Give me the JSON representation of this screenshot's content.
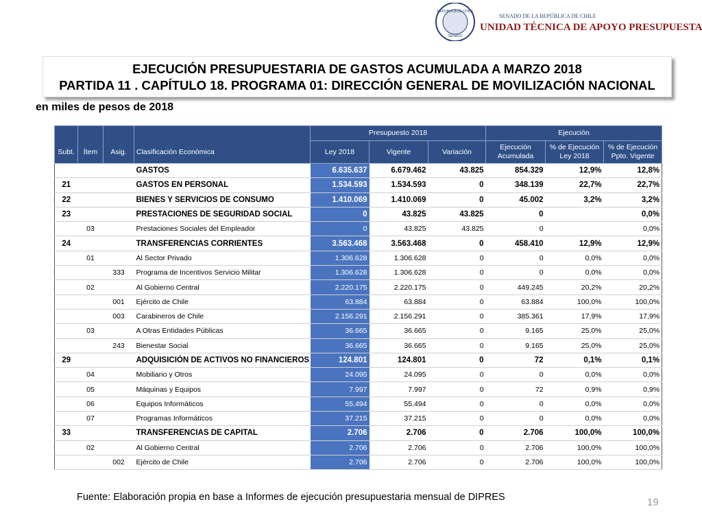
{
  "header": {
    "seal_top": "REPÚBLICA DE CHILE",
    "seal_bottom": "SENADO",
    "org": "SENADO DE LA REPÚBLICA DE CHILE",
    "unit": "UNIDAD TÉCNICA DE APOYO PRESUPUESTARIO"
  },
  "title": [
    "EJECUCIÓN PRESUPUESTARIA DE GASTOS ACUMULADA A MARZO 2018",
    "PARTIDA 11 . CAPÍTULO 18. PROGRAMA 01: DIRECCIÓN GENERAL DE MOVILIZACIÓN NACIONAL"
  ],
  "subtitle": "en miles de pesos de 2018",
  "table": {
    "group_headers": {
      "presupuesto": "Presupuesto 2018",
      "ejecucion": "Ejecución"
    },
    "columns": [
      "Subt.",
      "Ítem",
      "Asig.",
      "Clasificación Económica",
      "Ley 2018",
      "Vigente",
      "Variación",
      "Ejecución Acumulada",
      "% de Ejecución Ley 2018",
      "% de Ejecución Ppto. Vigente"
    ],
    "rows": [
      {
        "clasif": "GASTOS",
        "ley": "6.635.637",
        "vigente": "6.679.462",
        "variacion": "43.825",
        "ejecucion": "854.329",
        "pct_ley": "12,9%",
        "pct_vigente": "12,8%"
      },
      {
        "subt": "21",
        "clasif": "GASTOS EN PERSONAL",
        "ley": "1.534.593",
        "vigente": "1.534.593",
        "variacion": "0",
        "ejecucion": "348.139",
        "pct_ley": "22,7%",
        "pct_vigente": "22,7%"
      },
      {
        "subt": "22",
        "clasif": "BIENES Y SERVICIOS DE CONSUMO",
        "ley": "1.410.069",
        "vigente": "1.410.069",
        "variacion": "0",
        "ejecucion": "45.002",
        "pct_ley": "3,2%",
        "pct_vigente": "3,2%"
      },
      {
        "subt": "23",
        "clasif": "PRESTACIONES DE SEGURIDAD SOCIAL",
        "ley": "0",
        "vigente": "43.825",
        "variacion": "43.825",
        "ejecucion": "0",
        "pct_vigente": "0,0%"
      },
      {
        "item": "03",
        "clasif": "Prestaciones Sociales del Empleador",
        "ley": "0",
        "vigente": "43.825",
        "variacion": "43.825",
        "ejecucion": "0",
        "pct_vigente": "0,0%"
      },
      {
        "subt": "24",
        "clasif": "TRANSFERENCIAS CORRIENTES",
        "ley": "3.563.468",
        "vigente": "3.563.468",
        "variacion": "0",
        "ejecucion": "458.410",
        "pct_ley": "12,9%",
        "pct_vigente": "12,9%"
      },
      {
        "item": "01",
        "clasif": "Al Sector Privado",
        "ley": "1.306.628",
        "vigente": "1.306.628",
        "variacion": "0",
        "ejecucion": "0",
        "pct_ley": "0,0%",
        "pct_vigente": "0,0%"
      },
      {
        "asig": "333",
        "clasif": "Programa de Incentivos Servicio Militar",
        "ley": "1.306.628",
        "vigente": "1.306.628",
        "variacion": "0",
        "ejecucion": "0",
        "pct_ley": "0,0%",
        "pct_vigente": "0,0%"
      },
      {
        "item": "02",
        "clasif": "Al Gobierno Central",
        "ley": "2.220.175",
        "vigente": "2.220.175",
        "variacion": "0",
        "ejecucion": "449.245",
        "pct_ley": "20,2%",
        "pct_vigente": "20,2%"
      },
      {
        "asig": "001",
        "clasif": "Ejército de Chile",
        "ley": "63.884",
        "vigente": "63.884",
        "variacion": "0",
        "ejecucion": "63.884",
        "pct_ley": "100,0%",
        "pct_vigente": "100,0%"
      },
      {
        "asig": "003",
        "clasif": "Carabineros de Chile",
        "ley": "2.156.291",
        "vigente": "2.156.291",
        "variacion": "0",
        "ejecucion": "385.361",
        "pct_ley": "17,9%",
        "pct_vigente": "17,9%"
      },
      {
        "item": "03",
        "clasif": "A Otras Entidades Públicas",
        "ley": "36.665",
        "vigente": "36.665",
        "variacion": "0",
        "ejecucion": "9.165",
        "pct_ley": "25,0%",
        "pct_vigente": "25,0%"
      },
      {
        "asig": "243",
        "clasif": "Bienestar Social",
        "ley": "36.665",
        "vigente": "36.665",
        "variacion": "0",
        "ejecucion": "9.165",
        "pct_ley": "25,0%",
        "pct_vigente": "25,0%"
      },
      {
        "subt": "29",
        "clasif": "ADQUISICIÓN DE ACTIVOS NO FINANCIEROS",
        "ley": "124.801",
        "vigente": "124.801",
        "variacion": "0",
        "ejecucion": "72",
        "pct_ley": "0,1%",
        "pct_vigente": "0,1%"
      },
      {
        "item": "04",
        "clasif": "Mobiliario y Otros",
        "ley": "24.095",
        "vigente": "24.095",
        "variacion": "0",
        "ejecucion": "0",
        "pct_ley": "0,0%",
        "pct_vigente": "0,0%"
      },
      {
        "item": "05",
        "clasif": "Máquinas y Equipos",
        "ley": "7.997",
        "vigente": "7.997",
        "variacion": "0",
        "ejecucion": "72",
        "pct_ley": "0,9%",
        "pct_vigente": "0,9%"
      },
      {
        "item": "06",
        "clasif": "Equipos Informáticos",
        "ley": "55.494",
        "vigente": "55.494",
        "variacion": "0",
        "ejecucion": "0",
        "pct_ley": "0,0%",
        "pct_vigente": "0,0%"
      },
      {
        "item": "07",
        "clasif": "Programas Informáticos",
        "ley": "37.215",
        "vigente": "37.215",
        "variacion": "0",
        "ejecucion": "0",
        "pct_ley": "0,0%",
        "pct_vigente": "0,0%"
      },
      {
        "subt": "33",
        "clasif": "TRANSFERENCIAS DE CAPITAL",
        "ley": "2.706",
        "vigente": "2.706",
        "variacion": "0",
        "ejecucion": "2.706",
        "pct_ley": "100,0%",
        "pct_vigente": "100,0%"
      },
      {
        "item": "02",
        "clasif": "Al Gobierno Central",
        "ley": "2.706",
        "vigente": "2.706",
        "variacion": "0",
        "ejecucion": "2.706",
        "pct_ley": "100,0%",
        "pct_vigente": "100,0%"
      },
      {
        "asig": "002",
        "clasif": "Ejército de Chile",
        "ley": "2.706",
        "vigente": "2.706",
        "variacion": "0",
        "ejecucion": "2.706",
        "pct_ley": "100,0%",
        "pct_vigente": "100,0%"
      }
    ]
  },
  "source": "Fuente: Elaboración propia en base  a Informes de ejecución presupuestaria mensual de DIPRES",
  "page": "19"
}
